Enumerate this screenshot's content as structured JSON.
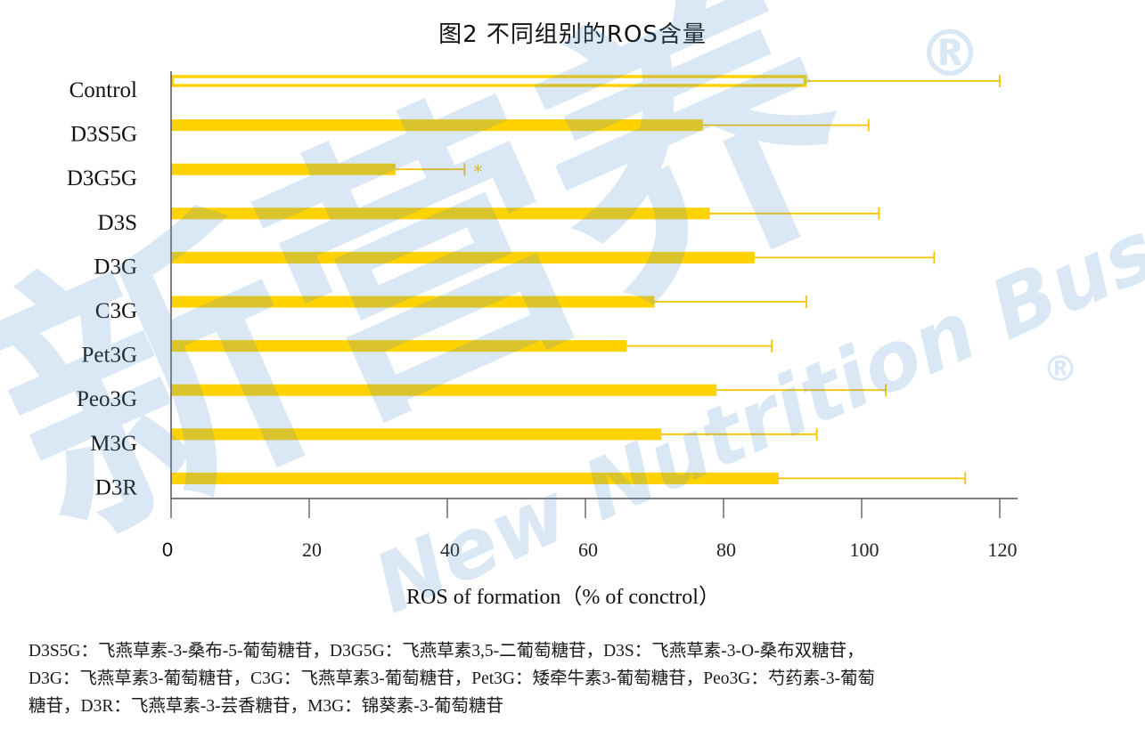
{
  "colors": {
    "bar": "#FFD200",
    "error_bar": "#F5C400",
    "axis": "#555555",
    "watermark": "#5C97CF"
  },
  "chart_data": {
    "type": "bar",
    "orientation": "horizontal",
    "title": "图2 不同组别的ROS含量",
    "xlabel": "ROS of formation（% of conctrol）",
    "ylabel": "",
    "xlim": [
      0,
      120
    ],
    "xticks": [
      "0",
      "20",
      "40",
      "60",
      "80",
      "100",
      "120"
    ],
    "categories": [
      "Control",
      "D3S5G",
      "D3G5G",
      "D3S",
      "D3G",
      "C3G",
      "Pet3G",
      "Peo3G",
      "M3G",
      "D3R"
    ],
    "values": [
      92,
      77,
      32.5,
      78,
      84.5,
      70,
      66,
      79,
      71,
      88
    ],
    "error_upper": [
      120,
      101,
      42.5,
      102.5,
      110.5,
      92,
      87,
      103.5,
      93.5,
      115
    ],
    "hollow_bars": [
      "Control"
    ],
    "annotations": [
      {
        "category": "D3G5G",
        "text": "*"
      }
    ],
    "legend": "none",
    "grid": false
  },
  "caption_lines": [
    "D3S5G：飞燕草素-3-桑布-5-葡萄糖苷，D3G5G：飞燕草素3,5-二葡萄糖苷，D3S：飞燕草素-3-O-桑布双糖苷，",
    "D3G：飞燕草素3-葡萄糖苷，C3G：飞燕草素3-葡萄糖苷，Pet3G：矮牵牛素3-葡萄糖苷，Peo3G：芍药素-3-葡萄",
    "糖苷，D3R：飞燕草素-3-芸香糖苷，M3G：锦葵素-3-葡萄糖苷"
  ],
  "watermark": {
    "main": "新营养",
    "sub": "New Nutrition Business",
    "mark": "®"
  }
}
